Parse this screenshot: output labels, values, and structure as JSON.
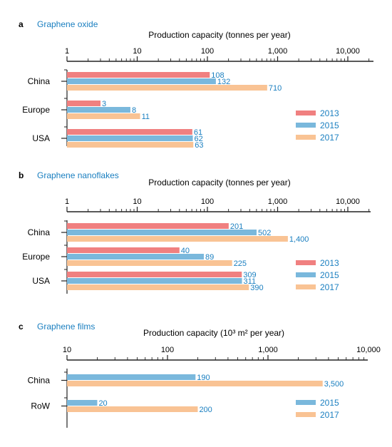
{
  "chart_data": [
    {
      "type": "bar",
      "panel_letter": "a",
      "title": "Graphene oxide",
      "xlabel": "Production capacity (tonnes per year)",
      "scale": "log",
      "xlim": [
        1,
        20000
      ],
      "ticks": [
        {
          "value": 1,
          "label": "1"
        },
        {
          "value": 10,
          "label": "10"
        },
        {
          "value": 100,
          "label": "100"
        },
        {
          "value": 1000,
          "label": "1,000"
        },
        {
          "value": 10000,
          "label": "10,000"
        }
      ],
      "categories": [
        "China",
        "Europe",
        "USA"
      ],
      "series": [
        {
          "name": "2013",
          "color": "#f08080",
          "values": [
            108,
            3,
            61
          ],
          "labels": [
            "108",
            "3",
            "61"
          ]
        },
        {
          "name": "2015",
          "color": "#7ab8dc",
          "values": [
            132,
            8,
            62
          ],
          "labels": [
            "132",
            "8",
            "62"
          ]
        },
        {
          "name": "2017",
          "color": "#f9c394",
          "values": [
            710,
            11,
            63
          ],
          "labels": [
            "710",
            "11",
            "63"
          ]
        }
      ],
      "legend_position": "right"
    },
    {
      "type": "bar",
      "panel_letter": "b",
      "title": "Graphene nanoflakes",
      "xlabel": "Production capacity (tonnes per year)",
      "scale": "log",
      "xlim": [
        1,
        20000
      ],
      "ticks": [
        {
          "value": 1,
          "label": "1"
        },
        {
          "value": 10,
          "label": "10"
        },
        {
          "value": 100,
          "label": "100"
        },
        {
          "value": 1000,
          "label": "1,000"
        },
        {
          "value": 10000,
          "label": "10,000"
        }
      ],
      "categories": [
        "China",
        "Europe",
        "USA"
      ],
      "series": [
        {
          "name": "2013",
          "color": "#f08080",
          "values": [
            201,
            40,
            309
          ],
          "labels": [
            "201",
            "40",
            "309"
          ]
        },
        {
          "name": "2015",
          "color": "#7ab8dc",
          "values": [
            502,
            89,
            311
          ],
          "labels": [
            "502",
            "89",
            "311"
          ]
        },
        {
          "name": "2017",
          "color": "#f9c394",
          "values": [
            1400,
            225,
            390
          ],
          "labels": [
            "1,400",
            "225",
            "390"
          ]
        }
      ],
      "legend_position": "right"
    },
    {
      "type": "bar",
      "panel_letter": "c",
      "title": "Graphene films",
      "xlabel": "Production capacity (10³ m² per year)",
      "scale": "log",
      "xlim": [
        10,
        10000
      ],
      "ticks": [
        {
          "value": 10,
          "label": "10"
        },
        {
          "value": 100,
          "label": "100"
        },
        {
          "value": 1000,
          "label": "1,000"
        },
        {
          "value": 10000,
          "label": "10,000"
        }
      ],
      "categories": [
        "China",
        "RoW"
      ],
      "series": [
        {
          "name": "2015",
          "color": "#7ab8dc",
          "values": [
            190,
            20
          ],
          "labels": [
            "190",
            "20"
          ]
        },
        {
          "name": "2017",
          "color": "#f9c394",
          "values": [
            3500,
            200
          ],
          "labels": [
            "3,500",
            "200"
          ]
        }
      ],
      "legend_position": "right"
    }
  ],
  "colors": {
    "label_text": "#1a7fc0",
    "axis": "#222222"
  }
}
